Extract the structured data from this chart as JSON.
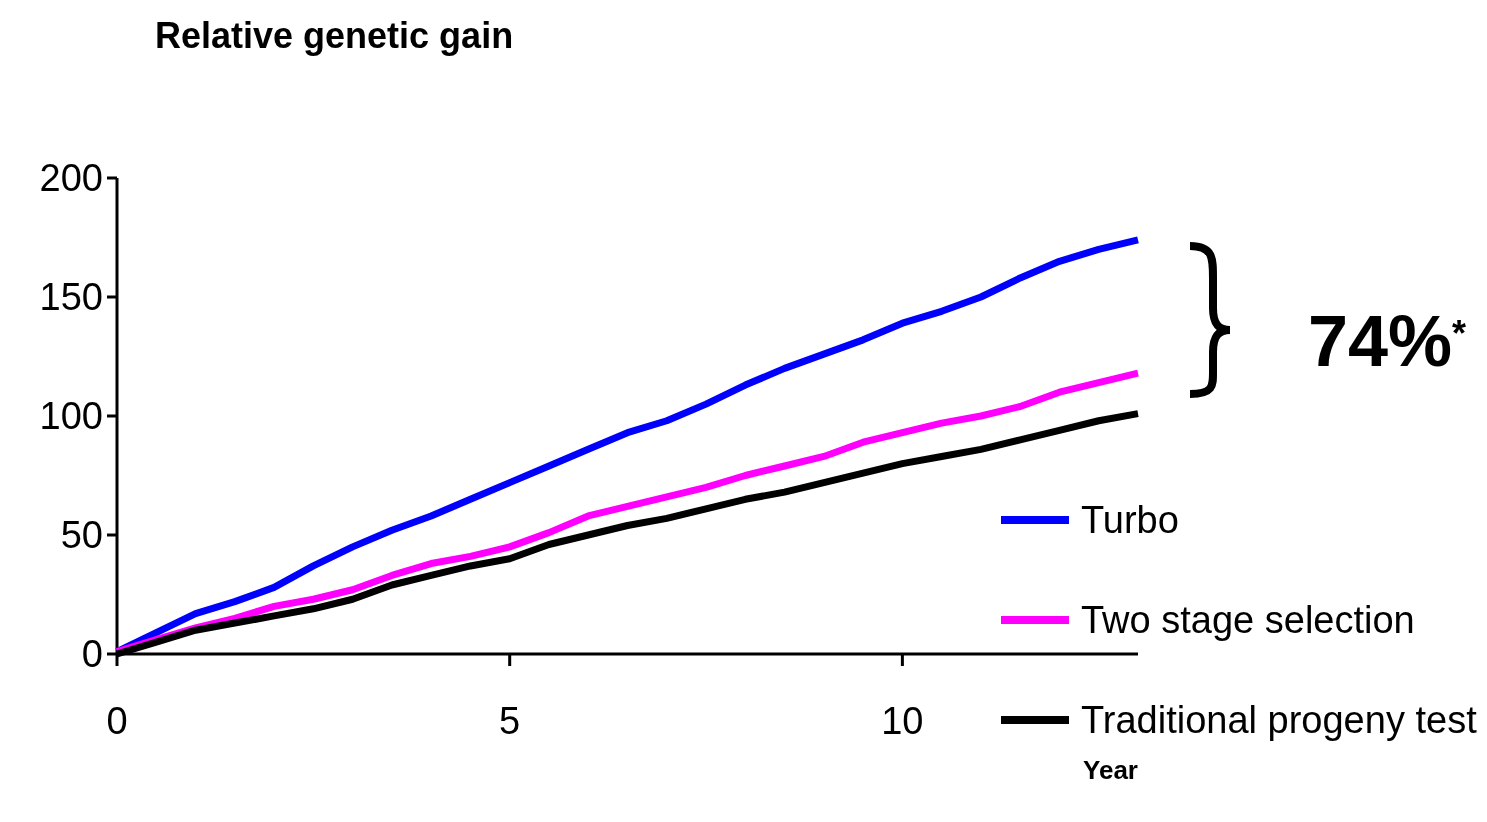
{
  "chart_data": {
    "type": "line",
    "ylabel": "Relative genetic gain",
    "xlabel": "Year",
    "x": [
      0,
      0.5,
      1,
      1.5,
      2,
      2.5,
      3,
      3.5,
      4,
      4.5,
      5,
      5.5,
      6,
      6.5,
      7,
      7.5,
      8,
      8.5,
      9,
      9.5,
      10,
      10.5,
      11,
      11.5,
      12,
      12.5,
      13
    ],
    "series": [
      {
        "name": "Turbo",
        "color": "#0000ff",
        "values": [
          1,
          9,
          17,
          22,
          28,
          37,
          45,
          52,
          58,
          65,
          72,
          79,
          86,
          93,
          98,
          105,
          113,
          120,
          126,
          132,
          139,
          144,
          150,
          158,
          165,
          170,
          174
        ]
      },
      {
        "name": "Two stage selection",
        "color": "#ff00ff",
        "values": [
          1,
          6,
          11,
          15,
          20,
          23,
          27,
          33,
          38,
          41,
          45,
          51,
          58,
          62,
          66,
          70,
          75,
          79,
          83,
          89,
          93,
          97,
          100,
          104,
          110,
          114,
          118
        ]
      },
      {
        "name": "Traditional progeny test",
        "color": "#000000",
        "values": [
          0,
          5,
          10,
          13,
          16,
          19,
          23,
          29,
          33,
          37,
          40,
          46,
          50,
          54,
          57,
          61,
          65,
          68,
          72,
          76,
          80,
          83,
          86,
          90,
          94,
          98,
          101
        ]
      }
    ],
    "xlim": [
      0,
      13
    ],
    "xticks": [
      0,
      5,
      10
    ],
    "ylim": [
      0,
      200
    ],
    "yticks": [
      0,
      50,
      100,
      150,
      200
    ],
    "legend": "bottom right",
    "marker": "none",
    "line_style": "solid",
    "grid": false,
    "annotations": [
      "74%$^{*}$"
    ]
  }
}
